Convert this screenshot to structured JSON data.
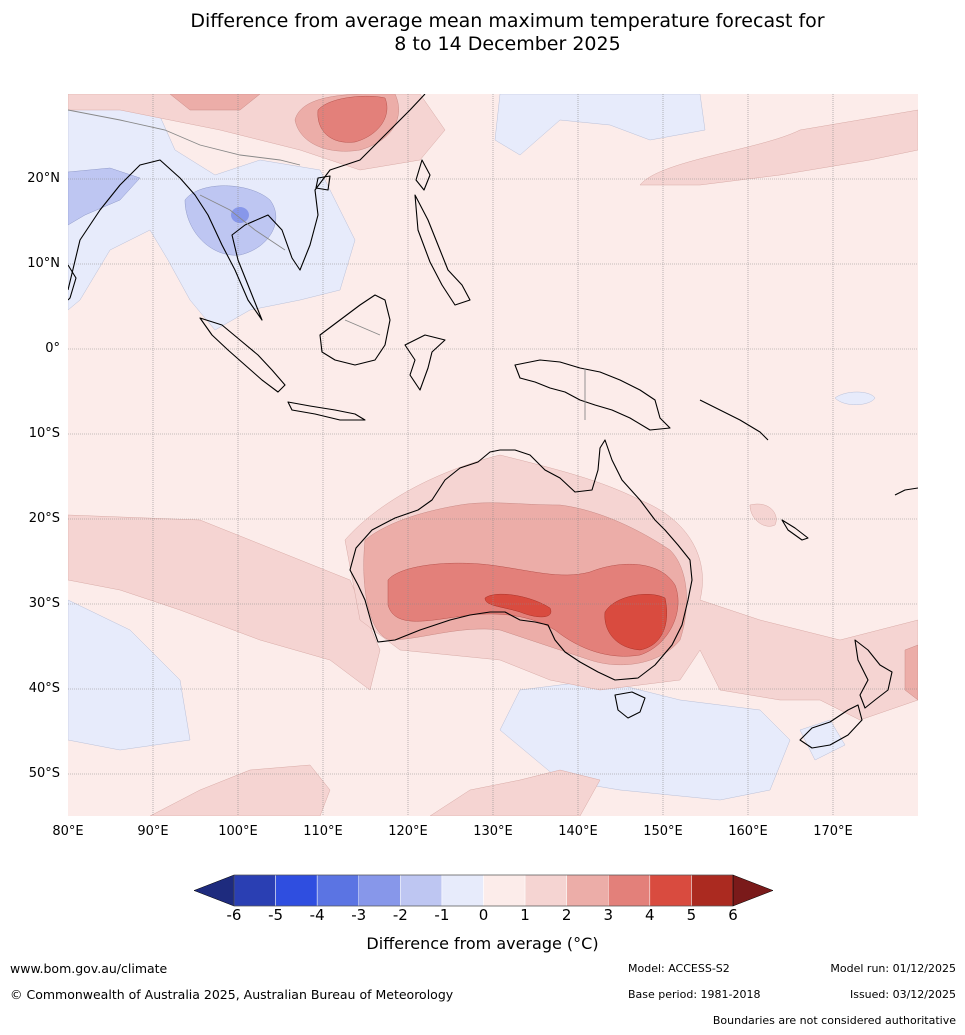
{
  "title": {
    "line1": "Difference from average mean maximum temperature forecast for",
    "line2": "8 to 14 December 2025"
  },
  "map": {
    "region": "Indian Ocean, Maritime Continent, Australia, western Pacific",
    "lat_labels": [
      "20°N",
      "10°N",
      "0°",
      "10°S",
      "20°S",
      "30°S",
      "40°S",
      "50°S"
    ],
    "lon_labels": [
      "80°E",
      "90°E",
      "100°E",
      "110°E",
      "120°E",
      "130°E",
      "140°E",
      "150°E",
      "160°E",
      "170°E"
    ]
  },
  "colorbar": {
    "ticks": [
      "-6",
      "-5",
      "-4",
      "-3",
      "-2",
      "-1",
      "0",
      "1",
      "2",
      "3",
      "4",
      "5",
      "6"
    ],
    "colors": [
      "#1e2b7e",
      "#2a3fb3",
      "#2f4ee0",
      "#5b74e3",
      "#8797ea",
      "#bec6f2",
      "#e7ebfb",
      "#fcecea",
      "#f5d4d2",
      "#ecada8",
      "#e3807a",
      "#d94b3f",
      "#ab2a20",
      "#7a1a1a"
    ],
    "label": "Difference from average (°C)"
  },
  "footer": {
    "url": "www.bom.gov.au/climate",
    "copyright": "© Commonwealth of Australia 2025, Australian Bureau of Meteorology",
    "model": "Model: ACCESS-S2",
    "base_period": "Base period: 1981-2018",
    "model_run": "Model run: 01/12/2025",
    "issued": "Issued: 03/12/2025",
    "disclaimer": "Boundaries are not considered authoritative"
  }
}
